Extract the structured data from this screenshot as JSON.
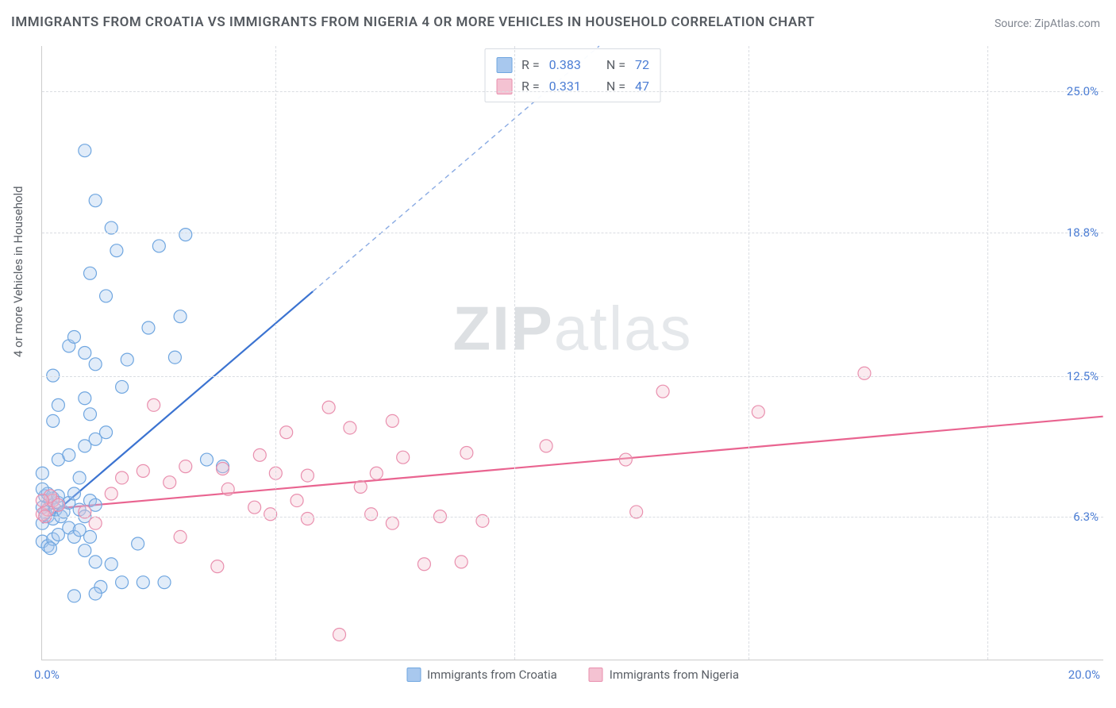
{
  "title": "IMMIGRANTS FROM CROATIA VS IMMIGRANTS FROM NIGERIA 4 OR MORE VEHICLES IN HOUSEHOLD CORRELATION CHART",
  "source": "Source: ZipAtlas.com",
  "y_axis_label": "4 or more Vehicles in Household",
  "watermark_a": "ZIP",
  "watermark_b": "atlas",
  "chart": {
    "type": "scatter",
    "xlim": [
      0,
      20
    ],
    "ylim": [
      0,
      27
    ],
    "x_ticks": [
      0,
      20
    ],
    "x_tick_labels": [
      "0.0%",
      "20.0%"
    ],
    "x_minor_ticks": [
      4.4,
      8.9,
      13.3,
      17.8
    ],
    "y_ticks": [
      6.3,
      12.5,
      18.8,
      25.0
    ],
    "y_tick_labels": [
      "6.3%",
      "12.5%",
      "18.8%",
      "25.0%"
    ],
    "grid_color": "#dadde2",
    "background_color": "#ffffff",
    "marker_radius": 8,
    "marker_fill_opacity": 0.35,
    "marker_stroke_width": 1.2,
    "line_width": 2.2
  },
  "series": [
    {
      "key": "croatia",
      "label": "Immigrants from Croatia",
      "color_fill": "#a8c8ee",
      "color_stroke": "#6fa6e0",
      "line_color": "#3b73d1",
      "R": "0.383",
      "N": "72",
      "trend": {
        "x1": 0,
        "y1": 6.0,
        "x2": 5.1,
        "y2": 16.2,
        "x2_dash": 10.5,
        "y2_dash": 27
      },
      "points": [
        [
          0.0,
          6.0
        ],
        [
          0.1,
          6.3
        ],
        [
          0.05,
          6.5
        ],
        [
          0.1,
          6.8
        ],
        [
          0.2,
          6.2
        ],
        [
          0.0,
          6.7
        ],
        [
          0.15,
          7.0
        ],
        [
          0.05,
          7.2
        ],
        [
          0.2,
          7.1
        ],
        [
          0.1,
          7.3
        ],
        [
          0.0,
          7.5
        ],
        [
          0.25,
          6.6
        ],
        [
          0.3,
          6.9
        ],
        [
          0.35,
          6.3
        ],
        [
          0.4,
          6.5
        ],
        [
          0.3,
          7.2
        ],
        [
          0.0,
          5.2
        ],
        [
          0.1,
          5.0
        ],
        [
          0.2,
          5.3
        ],
        [
          0.3,
          5.5
        ],
        [
          0.15,
          4.9
        ],
        [
          0.5,
          5.8
        ],
        [
          0.6,
          5.4
        ],
        [
          0.7,
          5.7
        ],
        [
          0.9,
          5.4
        ],
        [
          0.8,
          4.8
        ],
        [
          1.0,
          4.3
        ],
        [
          1.3,
          4.2
        ],
        [
          1.8,
          5.1
        ],
        [
          1.1,
          3.2
        ],
        [
          1.5,
          3.4
        ],
        [
          1.9,
          3.4
        ],
        [
          2.3,
          3.4
        ],
        [
          0.6,
          2.8
        ],
        [
          1.0,
          2.9
        ],
        [
          0.5,
          6.9
        ],
        [
          0.7,
          6.6
        ],
        [
          0.8,
          6.3
        ],
        [
          0.9,
          7.0
        ],
        [
          1.0,
          6.8
        ],
        [
          0.6,
          7.3
        ],
        [
          0.7,
          8.0
        ],
        [
          0.0,
          8.2
        ],
        [
          0.3,
          8.8
        ],
        [
          0.5,
          9.0
        ],
        [
          0.8,
          9.4
        ],
        [
          1.0,
          9.7
        ],
        [
          1.2,
          10.0
        ],
        [
          0.9,
          10.8
        ],
        [
          0.2,
          10.5
        ],
        [
          0.3,
          11.2
        ],
        [
          0.8,
          11.5
        ],
        [
          1.5,
          12.0
        ],
        [
          0.2,
          12.5
        ],
        [
          1.0,
          13.0
        ],
        [
          0.8,
          13.5
        ],
        [
          0.5,
          13.8
        ],
        [
          1.6,
          13.2
        ],
        [
          2.5,
          13.3
        ],
        [
          0.6,
          14.2
        ],
        [
          2.0,
          14.6
        ],
        [
          2.6,
          15.1
        ],
        [
          1.2,
          16.0
        ],
        [
          0.9,
          17.0
        ],
        [
          1.4,
          18.0
        ],
        [
          2.2,
          18.2
        ],
        [
          2.7,
          18.7
        ],
        [
          1.3,
          19.0
        ],
        [
          1.0,
          20.2
        ],
        [
          0.8,
          22.4
        ],
        [
          3.1,
          8.8
        ],
        [
          3.4,
          8.5
        ]
      ]
    },
    {
      "key": "nigeria",
      "label": "Immigrants from Nigeria",
      "color_fill": "#f4c2d2",
      "color_stroke": "#e98fae",
      "line_color": "#e96490",
      "R": "0.331",
      "N": "47",
      "trend": {
        "x1": 0,
        "y1": 6.6,
        "x2": 20,
        "y2": 10.7
      },
      "points": [
        [
          0.0,
          6.4
        ],
        [
          0.1,
          6.6
        ],
        [
          0.2,
          7.0
        ],
        [
          0.15,
          7.2
        ],
        [
          0.3,
          6.8
        ],
        [
          0.05,
          6.3
        ],
        [
          0.0,
          7.0
        ],
        [
          1.3,
          7.3
        ],
        [
          1.5,
          8.0
        ],
        [
          1.9,
          8.3
        ],
        [
          2.1,
          11.2
        ],
        [
          2.6,
          5.4
        ],
        [
          2.7,
          8.5
        ],
        [
          3.3,
          4.1
        ],
        [
          3.4,
          8.4
        ],
        [
          3.5,
          7.5
        ],
        [
          4.0,
          6.7
        ],
        [
          4.1,
          9.0
        ],
        [
          4.3,
          6.4
        ],
        [
          4.4,
          8.2
        ],
        [
          4.6,
          10.0
        ],
        [
          4.8,
          7.0
        ],
        [
          5.0,
          8.1
        ],
        [
          5.0,
          6.2
        ],
        [
          5.4,
          11.1
        ],
        [
          5.6,
          1.1
        ],
        [
          5.8,
          10.2
        ],
        [
          6.0,
          7.6
        ],
        [
          6.2,
          6.4
        ],
        [
          6.3,
          8.2
        ],
        [
          6.6,
          6.0
        ],
        [
          6.6,
          10.5
        ],
        [
          6.8,
          8.9
        ],
        [
          7.2,
          4.2
        ],
        [
          7.5,
          6.3
        ],
        [
          7.9,
          4.3
        ],
        [
          8.0,
          9.1
        ],
        [
          8.3,
          6.1
        ],
        [
          9.5,
          9.4
        ],
        [
          11.0,
          8.8
        ],
        [
          11.2,
          6.5
        ],
        [
          11.7,
          11.8
        ],
        [
          13.5,
          10.9
        ],
        [
          15.5,
          12.6
        ],
        [
          0.8,
          6.5
        ],
        [
          1.0,
          6.0
        ],
        [
          2.4,
          7.8
        ]
      ]
    }
  ],
  "legend": {
    "R_label": "R =",
    "N_label": "N ="
  }
}
